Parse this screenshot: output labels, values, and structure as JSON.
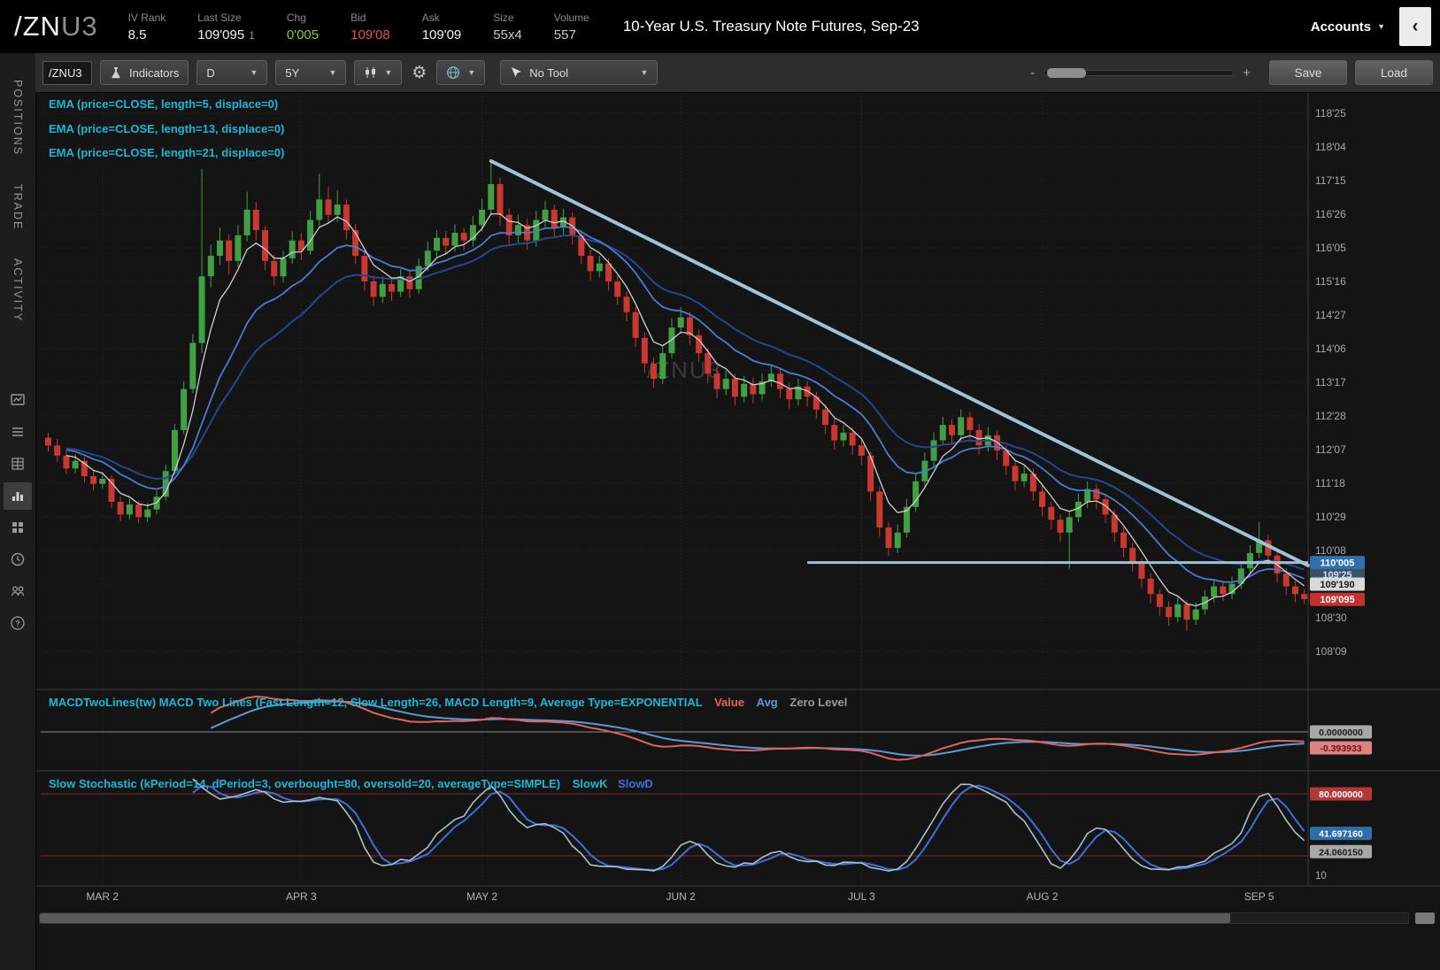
{
  "header": {
    "symbol": "/ZN",
    "symbol_suffix": "U3",
    "stats": [
      {
        "label": "IV Rank",
        "value": "8.5"
      },
      {
        "label": "Last Size",
        "value": "109'095",
        "extra": "1"
      },
      {
        "label": "Chg",
        "value": "0'005"
      },
      {
        "label": "Bid",
        "value": "109'08"
      },
      {
        "label": "Ask",
        "value": "109'09"
      },
      {
        "label": "Size",
        "value": "55x4"
      },
      {
        "label": "Volume",
        "value": "557"
      }
    ],
    "title": "10-Year U.S. Treasury Note Futures, Sep-23",
    "accounts_label": "Accounts"
  },
  "sidebar": {
    "tabs": [
      "POSITIONS",
      "TRADE",
      "ACTIVITY"
    ]
  },
  "toolbar": {
    "symbol_value": "/ZNU3",
    "indicators": "Indicators",
    "period": "D",
    "range": "5Y",
    "tool": "No Tool",
    "minus": "-",
    "plus": "+",
    "save": "Save",
    "load": "Load"
  },
  "studies": {
    "ema_labels": [
      "EMA (price=CLOSE, length=5, displace=0)",
      "EMA (price=CLOSE, length=13, displace=0)",
      "EMA (price=CLOSE, length=21, displace=0)"
    ],
    "macd_name": "MACDTwoLines(tw)",
    "macd_params": "MACD Two Lines (Fast Length=12, Slow Length=26, MACD Length=9, Average Type=EXPONENTIAL",
    "macd_value_label": "Value",
    "macd_avg_label": "Avg",
    "macd_zero_label": "Zero Level",
    "stoch_params": "Slow Stochastic (kPeriod=14, dPeriod=3, overbought=80, oversold=20, averageType=SIMPLE)",
    "stoch_k_label": "SlowK",
    "stoch_d_label": "SlowD"
  },
  "colors": {
    "up": "#42a044",
    "down": "#c9392f",
    "ema5": "#cfcfcf",
    "ema13": "#4a7bd6",
    "ema21": "#24488f",
    "macd_value": "#e0635f",
    "macd_avg": "#5b9bd5",
    "stoch_k": "#a9bfca",
    "stoch_d": "#3f6fd8",
    "drawing": "#9fc2d6"
  },
  "chart_data": {
    "type": "candlestick",
    "symbol_watermark": "/ZNU3",
    "price_axis_top": 118.78125,
    "price_axis_step": 0.65625,
    "price_axis_labels": [
      "118'25",
      "118'04",
      "117'15",
      "116'26",
      "116'05",
      "115'16",
      "114'27",
      "114'06",
      "113'17",
      "112'28",
      "112'07",
      "111'18",
      "110'29",
      "110'08",
      "109'19",
      "108'30",
      "108'09"
    ],
    "x_labels": [
      {
        "text": "MAR 2",
        "index": 6
      },
      {
        "text": "APR 3",
        "index": 28
      },
      {
        "text": "MAY 2",
        "index": 48
      },
      {
        "text": "JUN 2",
        "index": 70
      },
      {
        "text": "JUL 3",
        "index": 90
      },
      {
        "text": "AUG 2",
        "index": 110
      },
      {
        "text": "SEP 5",
        "index": 134
      }
    ],
    "candles": [
      [
        112.45,
        112.55,
        112.18,
        112.3
      ],
      [
        112.3,
        112.42,
        111.98,
        112.1
      ],
      [
        112.1,
        112.2,
        111.74,
        111.85
      ],
      [
        111.85,
        112.12,
        111.76,
        112.0
      ],
      [
        112.0,
        112.08,
        111.58,
        111.7
      ],
      [
        111.7,
        111.82,
        111.42,
        111.55
      ],
      [
        111.55,
        111.78,
        111.46,
        111.65
      ],
      [
        111.65,
        111.72,
        111.08,
        111.2
      ],
      [
        111.2,
        111.3,
        110.82,
        110.95
      ],
      [
        110.95,
        111.26,
        110.86,
        111.15
      ],
      [
        111.15,
        111.22,
        110.78,
        110.9
      ],
      [
        110.9,
        111.18,
        110.8,
        111.05
      ],
      [
        111.05,
        111.42,
        110.96,
        111.3
      ],
      [
        111.3,
        111.92,
        111.22,
        111.8
      ],
      [
        111.8,
        112.72,
        111.74,
        112.6
      ],
      [
        112.6,
        113.55,
        112.52,
        113.4
      ],
      [
        113.4,
        114.48,
        113.32,
        114.3
      ],
      [
        114.3,
        117.7,
        114.1,
        115.6
      ],
      [
        115.6,
        116.22,
        115.38,
        116.0
      ],
      [
        116.0,
        116.55,
        115.82,
        116.3
      ],
      [
        116.3,
        116.42,
        115.64,
        115.9
      ],
      [
        115.9,
        116.6,
        115.78,
        116.4
      ],
      [
        116.4,
        117.25,
        116.28,
        116.9
      ],
      [
        116.9,
        117.05,
        116.3,
        116.5
      ],
      [
        116.5,
        116.58,
        115.72,
        115.9
      ],
      [
        115.9,
        116.02,
        115.42,
        115.6
      ],
      [
        115.6,
        116.1,
        115.48,
        115.95
      ],
      [
        115.95,
        116.48,
        115.85,
        116.3
      ],
      [
        116.3,
        116.45,
        115.92,
        116.1
      ],
      [
        116.1,
        116.88,
        116.02,
        116.7
      ],
      [
        116.7,
        117.6,
        116.58,
        117.1
      ],
      [
        117.1,
        117.35,
        116.62,
        116.8
      ],
      [
        116.8,
        117.28,
        116.66,
        117.0
      ],
      [
        117.0,
        117.1,
        116.32,
        116.5
      ],
      [
        116.5,
        116.62,
        115.84,
        116.0
      ],
      [
        116.0,
        116.1,
        115.32,
        115.5
      ],
      [
        115.5,
        115.62,
        115.02,
        115.2
      ],
      [
        115.2,
        115.6,
        115.08,
        115.45
      ],
      [
        115.45,
        115.58,
        115.12,
        115.3
      ],
      [
        115.3,
        115.74,
        115.2,
        115.6
      ],
      [
        115.6,
        115.7,
        115.18,
        115.35
      ],
      [
        115.35,
        115.95,
        115.26,
        115.8
      ],
      [
        115.8,
        116.28,
        115.7,
        116.1
      ],
      [
        116.1,
        116.5,
        115.98,
        116.35
      ],
      [
        116.35,
        116.48,
        116.02,
        116.2
      ],
      [
        116.2,
        116.62,
        116.08,
        116.45
      ],
      [
        116.45,
        116.55,
        116.1,
        116.3
      ],
      [
        116.3,
        116.78,
        116.18,
        116.6
      ],
      [
        116.6,
        117.12,
        116.48,
        116.9
      ],
      [
        116.9,
        117.85,
        116.8,
        117.4
      ],
      [
        117.4,
        117.52,
        116.58,
        116.8
      ],
      [
        116.8,
        116.92,
        116.2,
        116.4
      ],
      [
        116.4,
        116.8,
        116.26,
        116.6
      ],
      [
        116.6,
        116.72,
        116.12,
        116.3
      ],
      [
        116.3,
        116.88,
        116.18,
        116.7
      ],
      [
        116.7,
        117.08,
        116.56,
        116.9
      ],
      [
        116.9,
        117.0,
        116.36,
        116.55
      ],
      [
        116.55,
        116.92,
        116.42,
        116.75
      ],
      [
        116.75,
        116.85,
        116.22,
        116.4
      ],
      [
        116.4,
        116.5,
        115.84,
        116.0
      ],
      [
        116.0,
        116.12,
        115.52,
        115.7
      ],
      [
        115.7,
        116.0,
        115.58,
        115.85
      ],
      [
        115.85,
        115.95,
        115.32,
        115.5
      ],
      [
        115.5,
        115.62,
        115.04,
        115.2
      ],
      [
        115.2,
        115.3,
        114.72,
        114.9
      ],
      [
        114.9,
        115.0,
        114.22,
        114.4
      ],
      [
        114.4,
        114.5,
        113.72,
        113.9
      ],
      [
        113.9,
        114.02,
        113.42,
        113.6
      ],
      [
        113.6,
        114.25,
        113.5,
        114.1
      ],
      [
        114.1,
        114.78,
        114.0,
        114.6
      ],
      [
        114.6,
        115.0,
        114.48,
        114.8
      ],
      [
        114.8,
        114.9,
        114.26,
        114.45
      ],
      [
        114.45,
        114.56,
        113.92,
        114.1
      ],
      [
        114.1,
        114.2,
        113.52,
        113.7
      ],
      [
        113.7,
        113.82,
        113.22,
        113.4
      ],
      [
        113.4,
        113.76,
        113.28,
        113.6
      ],
      [
        113.6,
        113.7,
        113.08,
        113.25
      ],
      [
        113.25,
        113.66,
        113.14,
        113.5
      ],
      [
        113.5,
        113.62,
        113.12,
        113.3
      ],
      [
        113.3,
        113.7,
        113.18,
        113.55
      ],
      [
        113.55,
        113.88,
        113.44,
        113.7
      ],
      [
        113.7,
        113.8,
        113.22,
        113.4
      ],
      [
        113.4,
        113.52,
        113.02,
        113.2
      ],
      [
        113.2,
        113.6,
        113.08,
        113.45
      ],
      [
        113.45,
        113.56,
        113.06,
        113.25
      ],
      [
        113.25,
        113.35,
        112.82,
        113.0
      ],
      [
        113.0,
        113.1,
        112.52,
        112.7
      ],
      [
        112.7,
        112.82,
        112.22,
        112.4
      ],
      [
        112.4,
        112.7,
        112.28,
        112.55
      ],
      [
        112.55,
        112.65,
        112.12,
        112.3
      ],
      [
        112.3,
        112.42,
        111.92,
        112.1
      ],
      [
        112.1,
        112.18,
        111.22,
        111.4
      ],
      [
        111.4,
        111.5,
        110.52,
        110.7
      ],
      [
        110.7,
        110.8,
        110.15,
        110.3
      ],
      [
        110.3,
        110.76,
        110.2,
        110.6
      ],
      [
        110.6,
        111.26,
        110.5,
        111.1
      ],
      [
        111.1,
        111.76,
        111.0,
        111.6
      ],
      [
        111.6,
        112.16,
        111.5,
        112.0
      ],
      [
        112.0,
        112.56,
        111.9,
        112.4
      ],
      [
        112.4,
        112.86,
        112.3,
        112.7
      ],
      [
        112.7,
        112.82,
        112.32,
        112.5
      ],
      [
        112.5,
        113.0,
        112.38,
        112.85
      ],
      [
        112.85,
        112.95,
        112.42,
        112.6
      ],
      [
        112.6,
        112.72,
        112.12,
        112.3
      ],
      [
        112.3,
        112.66,
        112.18,
        112.5
      ],
      [
        112.5,
        112.6,
        112.02,
        112.2
      ],
      [
        112.2,
        112.3,
        111.72,
        111.9
      ],
      [
        111.9,
        112.02,
        111.42,
        111.6
      ],
      [
        111.6,
        111.9,
        111.48,
        111.75
      ],
      [
        111.75,
        111.85,
        111.22,
        111.4
      ],
      [
        111.4,
        111.52,
        110.92,
        111.1
      ],
      [
        111.1,
        111.2,
        110.66,
        110.85
      ],
      [
        110.85,
        110.95,
        110.42,
        110.6
      ],
      [
        110.6,
        111.0,
        109.9,
        110.9
      ],
      [
        110.9,
        111.36,
        110.8,
        111.2
      ],
      [
        111.2,
        111.6,
        111.08,
        111.45
      ],
      [
        111.45,
        111.55,
        111.06,
        111.25
      ],
      [
        111.25,
        111.35,
        110.78,
        110.95
      ],
      [
        110.95,
        111.05,
        110.42,
        110.6
      ],
      [
        110.6,
        110.7,
        110.12,
        110.3
      ],
      [
        110.3,
        110.4,
        109.84,
        110.0
      ],
      [
        110.0,
        110.1,
        109.52,
        109.7
      ],
      [
        109.7,
        109.8,
        109.22,
        109.4
      ],
      [
        109.4,
        109.5,
        108.98,
        109.15
      ],
      [
        109.15,
        109.26,
        108.78,
        108.95
      ],
      [
        108.95,
        109.34,
        108.85,
        109.2
      ],
      [
        109.2,
        109.28,
        108.68,
        108.9
      ],
      [
        108.9,
        109.24,
        108.8,
        109.1
      ],
      [
        109.1,
        109.48,
        109.0,
        109.35
      ],
      [
        109.35,
        109.68,
        109.24,
        109.55
      ],
      [
        109.55,
        109.65,
        109.26,
        109.4
      ],
      [
        109.4,
        109.74,
        109.3,
        109.6
      ],
      [
        109.6,
        110.04,
        109.5,
        109.9
      ],
      [
        109.9,
        110.36,
        109.8,
        110.2
      ],
      [
        110.2,
        110.8,
        110.1,
        110.45
      ],
      [
        110.45,
        110.55,
        109.98,
        110.15
      ],
      [
        110.15,
        110.25,
        109.62,
        109.8
      ],
      [
        109.8,
        109.9,
        109.38,
        109.55
      ],
      [
        109.55,
        109.66,
        109.24,
        109.4
      ],
      [
        109.4,
        109.5,
        109.2,
        109.3
      ]
    ],
    "drawings": {
      "trendline": {
        "i1": 49,
        "p1": 117.85,
        "i2": 141,
        "p2": 109.82
      },
      "hline": {
        "i1": 84,
        "p1": 110.0156
      }
    },
    "price_bubbles": [
      {
        "text": "110'005",
        "price": 110.0156,
        "bg": "#2e6fae",
        "fg": "#ffffff"
      },
      {
        "text": "109'25",
        "price": 109.7812,
        "bg": "#3c4f66",
        "fg": "#cfe0f0"
      },
      {
        "text": "109'190",
        "price": 109.5937,
        "bg": "#d9d9d9",
        "fg": "#1a1a1a"
      },
      {
        "text": "109'095",
        "price": 109.2969,
        "bg": "#c53030",
        "fg": "#ffffff"
      }
    ],
    "macd_bubbles": [
      {
        "text": "0.0000000",
        "bg": "#a8a8a8",
        "fg": "#1a1a1a"
      },
      {
        "text": "-0.393933",
        "bg": "#dd8383",
        "fg": "#6e0f0f"
      }
    ],
    "stoch_bubbles": [
      {
        "text": "80.000000",
        "value": 80,
        "bg": "#b53838",
        "fg": "#ffffff"
      },
      {
        "text": "41.697160",
        "value": 41.7,
        "bg": "#2d6da8",
        "fg": "#ffffff"
      },
      {
        "text": "24.060150",
        "value": 24.06,
        "bg": "#a8a8a8",
        "fg": "#1a1a1a"
      }
    ],
    "stoch_axis_extra": "10",
    "overbought": 80,
    "oversold": 20
  },
  "watermark": "/ZNU3"
}
